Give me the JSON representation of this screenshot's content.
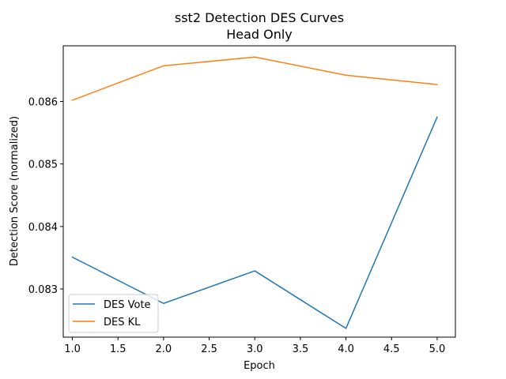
{
  "chart_data": {
    "type": "line",
    "title": "sst2 Detection DES Curves",
    "subtitle": "Head Only",
    "xlabel": "Epoch",
    "ylabel": "Detection Score (normalized)",
    "x": [
      1.0,
      2.0,
      3.0,
      4.0,
      5.0
    ],
    "xlim": [
      0.9,
      5.2
    ],
    "ylim": [
      0.08223,
      0.08689
    ],
    "x_ticks": [
      1.0,
      1.5,
      2.0,
      2.5,
      3.0,
      3.5,
      4.0,
      4.5,
      5.0
    ],
    "x_tick_labels": [
      "1.0",
      "1.5",
      "2.0",
      "2.5",
      "3.0",
      "3.5",
      "4.0",
      "4.5",
      "5.0"
    ],
    "y_ticks": [
      0.083,
      0.084,
      0.085,
      0.086
    ],
    "y_tick_labels": [
      "0.083",
      "0.084",
      "0.085",
      "0.086"
    ],
    "grid": false,
    "legend_position": "lower-left",
    "series": [
      {
        "name": "DES Vote",
        "color": "#1f77b4",
        "values": [
          0.08351,
          0.08277,
          0.08329,
          0.08237,
          0.08575
        ]
      },
      {
        "name": "DES KL",
        "color": "#ff7f0e",
        "values": [
          0.08602,
          0.08657,
          0.08671,
          0.08642,
          0.08627
        ]
      }
    ]
  }
}
